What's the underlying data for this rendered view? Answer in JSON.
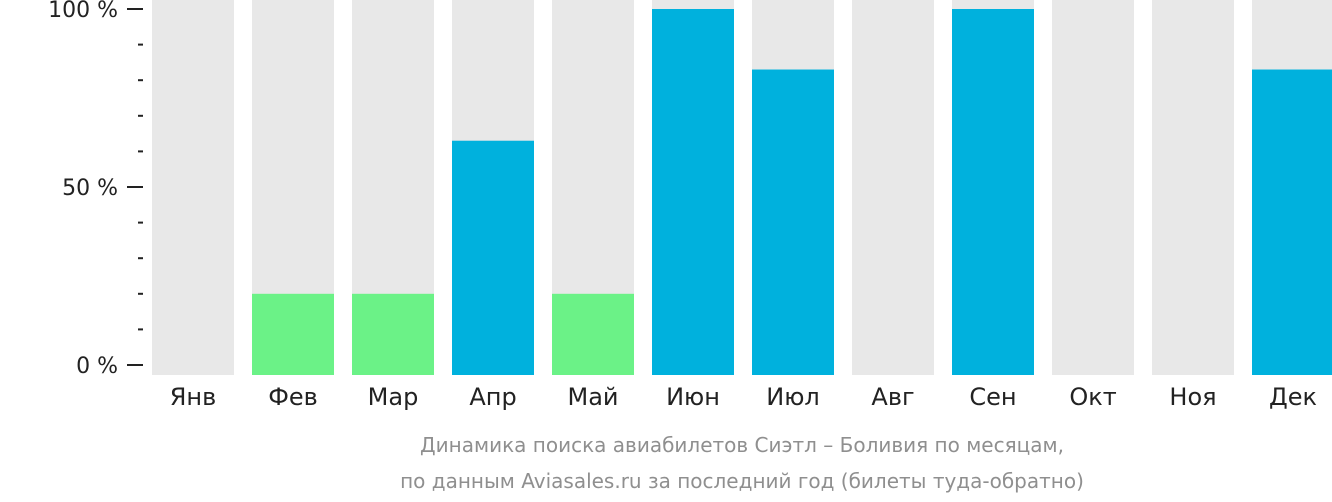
{
  "chart_data": {
    "type": "bar",
    "categories": [
      "Янв",
      "Фев",
      "Мар",
      "Апр",
      "Май",
      "Июн",
      "Июл",
      "Авг",
      "Сен",
      "Окт",
      "Ноя",
      "Дек"
    ],
    "values": [
      0,
      20,
      20,
      63,
      20,
      100,
      83,
      0,
      100,
      0,
      0,
      83
    ],
    "bar_color_level": [
      "none",
      "low",
      "low",
      "high",
      "low",
      "high",
      "high",
      "none",
      "high",
      "none",
      "none",
      "high"
    ],
    "ylim": [
      0,
      100
    ],
    "y_ticks": [
      {
        "value": 100,
        "label": "100 %"
      },
      {
        "value": 50,
        "label": "50 %"
      },
      {
        "value": 0,
        "label": "0 %"
      }
    ],
    "caption_lines": [
      "Динамика поиска авиабилетов Сиэтл – Боливия по месяцам,",
      "по данным Aviasales.ru за последний год (билеты туда-обратно)"
    ],
    "colors": {
      "track": "#e8e8e8",
      "high": "#00b1dd",
      "low": "#6bf287",
      "axis": "#222222"
    },
    "grid": false,
    "legend": "none"
  }
}
